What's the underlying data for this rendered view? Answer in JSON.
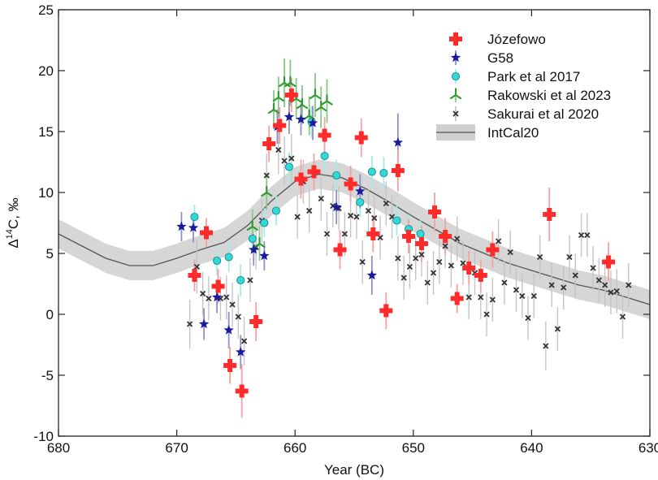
{
  "chart_data": {
    "type": "scatter",
    "xlabel": "Year (BC)",
    "ylabel_main": "Δ",
    "ylabel_sup": "14",
    "ylabel_rest": "C, ‰",
    "xlim": [
      680,
      630
    ],
    "ylim": [
      -10,
      25
    ],
    "x_ticks": [
      680,
      670,
      660,
      650,
      640,
      630
    ],
    "y_ticks": [
      -10,
      -5,
      0,
      5,
      10,
      15,
      20,
      25
    ],
    "legend_position": "top-right",
    "colors": {
      "jozefowo": "#ff2a2a",
      "jozefowo_err": "#f6a0a0",
      "g58": "#1a1aa0",
      "g58_err": "#9090c8",
      "park": "#33d8d8",
      "park_err": "#9eecec",
      "rakowski": "#2f9a2f",
      "rakowski_err": "#86c886",
      "sakurai": "#333333",
      "sakurai_err": "#c4c4c4",
      "intcal": "#555555",
      "intcal_band": "#cfcfcf"
    },
    "series": [
      {
        "name": "Józefowo",
        "key": "jozefowo",
        "marker": "plus",
        "points": [
          {
            "x": 668.5,
            "y": 3.2,
            "e": 1.3
          },
          {
            "x": 667.5,
            "y": 6.7,
            "e": 1.2
          },
          {
            "x": 666.5,
            "y": 2.3,
            "e": 1.4
          },
          {
            "x": 665.5,
            "y": -4.2,
            "e": 1.5
          },
          {
            "x": 664.5,
            "y": -6.3,
            "e": 2.2
          },
          {
            "x": 663.3,
            "y": -0.6,
            "e": 1.6
          },
          {
            "x": 662.2,
            "y": 14.0,
            "e": 1.5
          },
          {
            "x": 661.3,
            "y": 15.5,
            "e": 1.5
          },
          {
            "x": 660.3,
            "y": 18.0,
            "e": 1.4
          },
          {
            "x": 659.5,
            "y": 11.1,
            "e": 1.6
          },
          {
            "x": 658.4,
            "y": 11.7,
            "e": 1.5
          },
          {
            "x": 657.5,
            "y": 14.7,
            "e": 1.5
          },
          {
            "x": 656.2,
            "y": 5.3,
            "e": 1.6
          },
          {
            "x": 655.3,
            "y": 10.7,
            "e": 1.5
          },
          {
            "x": 654.4,
            "y": 14.5,
            "e": 1.6
          },
          {
            "x": 653.4,
            "y": 6.6,
            "e": 1.5
          },
          {
            "x": 652.3,
            "y": 0.3,
            "e": 1.5
          },
          {
            "x": 651.3,
            "y": 11.8,
            "e": 1.7
          },
          {
            "x": 650.4,
            "y": 6.4,
            "e": 1.4
          },
          {
            "x": 649.3,
            "y": 5.8,
            "e": 1.5
          },
          {
            "x": 648.2,
            "y": 8.4,
            "e": 1.6
          },
          {
            "x": 647.3,
            "y": 6.4,
            "e": 1.5
          },
          {
            "x": 646.3,
            "y": 1.3,
            "e": 1.2
          },
          {
            "x": 645.3,
            "y": 3.8,
            "e": 1.4
          },
          {
            "x": 644.3,
            "y": 3.2,
            "e": 1.3
          },
          {
            "x": 643.3,
            "y": 5.3,
            "e": 1.5
          },
          {
            "x": 638.5,
            "y": 8.2,
            "e": 2.2
          },
          {
            "x": 633.5,
            "y": 4.3,
            "e": 1.6
          }
        ]
      },
      {
        "name": "G58",
        "key": "g58",
        "marker": "star",
        "points": [
          {
            "x": 669.6,
            "y": 7.2,
            "e": 1.2
          },
          {
            "x": 668.6,
            "y": 7.1,
            "e": 1.2
          },
          {
            "x": 667.7,
            "y": -0.8,
            "e": 1.3
          },
          {
            "x": 666.6,
            "y": 1.4,
            "e": 1.3
          },
          {
            "x": 665.6,
            "y": -1.3,
            "e": 1.5
          },
          {
            "x": 664.6,
            "y": -3.1,
            "e": 1.4
          },
          {
            "x": 663.5,
            "y": 5.3,
            "e": 1.3
          },
          {
            "x": 662.6,
            "y": 4.8,
            "e": 1.2
          },
          {
            "x": 661.5,
            "y": 15.4,
            "e": 1.4
          },
          {
            "x": 660.5,
            "y": 16.2,
            "e": 1.4
          },
          {
            "x": 659.5,
            "y": 16.0,
            "e": 1.3
          },
          {
            "x": 658.5,
            "y": 15.7,
            "e": 1.4
          },
          {
            "x": 656.5,
            "y": 8.8,
            "e": 1.4
          },
          {
            "x": 654.5,
            "y": 10.1,
            "e": 1.4
          },
          {
            "x": 653.5,
            "y": 3.2,
            "e": 1.6
          },
          {
            "x": 651.3,
            "y": 14.1,
            "e": 2.4
          }
        ]
      },
      {
        "name": "Park et al 2017",
        "key": "park",
        "marker": "circle",
        "points": [
          {
            "x": 668.5,
            "y": 8.0,
            "e": 1.0
          },
          {
            "x": 666.6,
            "y": 4.4,
            "e": 1.2
          },
          {
            "x": 665.6,
            "y": 4.7,
            "e": 1.2
          },
          {
            "x": 664.6,
            "y": 2.8,
            "e": 1.3
          },
          {
            "x": 663.6,
            "y": 6.2,
            "e": 1.2
          },
          {
            "x": 662.6,
            "y": 7.5,
            "e": 1.2
          },
          {
            "x": 661.6,
            "y": 8.5,
            "e": 1.2
          },
          {
            "x": 660.5,
            "y": 12.1,
            "e": 1.2
          },
          {
            "x": 658.6,
            "y": 15.8,
            "e": 1.3
          },
          {
            "x": 657.5,
            "y": 13.0,
            "e": 1.3
          },
          {
            "x": 656.5,
            "y": 11.4,
            "e": 1.3
          },
          {
            "x": 654.5,
            "y": 9.2,
            "e": 1.2
          },
          {
            "x": 653.5,
            "y": 11.7,
            "e": 1.3
          },
          {
            "x": 652.5,
            "y": 11.6,
            "e": 1.3
          },
          {
            "x": 651.4,
            "y": 7.7,
            "e": 1.2
          },
          {
            "x": 650.4,
            "y": 7.0,
            "e": 1.2
          },
          {
            "x": 649.4,
            "y": 6.6,
            "e": 1.1
          }
        ]
      },
      {
        "name": "Rakowski et al 2023",
        "key": "rakowski",
        "marker": "tri",
        "points": [
          {
            "x": 663.6,
            "y": 7.2,
            "e": 1.4
          },
          {
            "x": 663.0,
            "y": 5.8,
            "e": 1.4
          },
          {
            "x": 662.4,
            "y": 10.0,
            "e": 1.4
          },
          {
            "x": 661.8,
            "y": 16.8,
            "e": 1.6
          },
          {
            "x": 661.4,
            "y": 17.8,
            "e": 1.7
          },
          {
            "x": 660.9,
            "y": 19.0,
            "e": 2.0
          },
          {
            "x": 660.4,
            "y": 19.0,
            "e": 1.9
          },
          {
            "x": 659.9,
            "y": 17.7,
            "e": 1.7
          },
          {
            "x": 659.4,
            "y": 17.2,
            "e": 1.6
          },
          {
            "x": 658.8,
            "y": 16.3,
            "e": 1.6
          },
          {
            "x": 658.3,
            "y": 18.0,
            "e": 1.8
          },
          {
            "x": 657.8,
            "y": 17.0,
            "e": 1.7
          },
          {
            "x": 657.3,
            "y": 17.5,
            "e": 1.8
          }
        ]
      },
      {
        "name": "Sakurai et al 2020",
        "key": "sakurai",
        "marker": "cross",
        "points": [
          {
            "x": 668.9,
            "y": -0.8,
            "e": 2.0
          },
          {
            "x": 668.3,
            "y": 3.9,
            "e": 2.2
          },
          {
            "x": 667.8,
            "y": 1.7,
            "e": 1.8
          },
          {
            "x": 667.3,
            "y": 1.3,
            "e": 1.8
          },
          {
            "x": 666.3,
            "y": 1.3,
            "e": 1.8
          },
          {
            "x": 665.8,
            "y": 1.4,
            "e": 1.8
          },
          {
            "x": 665.3,
            "y": 0.8,
            "e": 1.8
          },
          {
            "x": 664.8,
            "y": -0.2,
            "e": 1.8
          },
          {
            "x": 664.3,
            "y": -2.2,
            "e": 2.0
          },
          {
            "x": 663.8,
            "y": 2.8,
            "e": 1.8
          },
          {
            "x": 663.3,
            "y": 5.5,
            "e": 1.8
          },
          {
            "x": 662.8,
            "y": 7.7,
            "e": 1.8
          },
          {
            "x": 662.4,
            "y": 11.4,
            "e": 1.8
          },
          {
            "x": 661.4,
            "y": 13.5,
            "e": 2.0
          },
          {
            "x": 660.9,
            "y": 12.6,
            "e": 2.0
          },
          {
            "x": 660.3,
            "y": 12.8,
            "e": 2.0
          },
          {
            "x": 659.8,
            "y": 8.0,
            "e": 1.8
          },
          {
            "x": 659.3,
            "y": 10.9,
            "e": 1.8
          },
          {
            "x": 658.8,
            "y": 8.5,
            "e": 1.8
          },
          {
            "x": 657.8,
            "y": 9.5,
            "e": 1.8
          },
          {
            "x": 657.3,
            "y": 6.6,
            "e": 1.8
          },
          {
            "x": 656.8,
            "y": 8.9,
            "e": 1.8
          },
          {
            "x": 656.3,
            "y": 8.7,
            "e": 1.8
          },
          {
            "x": 655.8,
            "y": 6.6,
            "e": 1.8
          },
          {
            "x": 655.3,
            "y": 8.1,
            "e": 1.8
          },
          {
            "x": 654.8,
            "y": 8.0,
            "e": 1.8
          },
          {
            "x": 654.3,
            "y": 4.3,
            "e": 1.8
          },
          {
            "x": 653.8,
            "y": 8.5,
            "e": 1.8
          },
          {
            "x": 653.3,
            "y": 7.9,
            "e": 1.8
          },
          {
            "x": 652.8,
            "y": 6.3,
            "e": 1.8
          },
          {
            "x": 652.3,
            "y": 9.1,
            "e": 1.8
          },
          {
            "x": 651.8,
            "y": 8.0,
            "e": 1.8
          },
          {
            "x": 651.3,
            "y": 4.6,
            "e": 1.8
          },
          {
            "x": 650.8,
            "y": 3.0,
            "e": 1.8
          },
          {
            "x": 650.3,
            "y": 3.9,
            "e": 1.8
          },
          {
            "x": 649.8,
            "y": 4.6,
            "e": 1.8
          },
          {
            "x": 649.3,
            "y": 4.9,
            "e": 1.8
          },
          {
            "x": 648.8,
            "y": 2.6,
            "e": 1.8
          },
          {
            "x": 648.3,
            "y": 3.4,
            "e": 1.8
          },
          {
            "x": 647.8,
            "y": 4.3,
            "e": 1.8
          },
          {
            "x": 647.3,
            "y": 5.6,
            "e": 1.8
          },
          {
            "x": 646.8,
            "y": 4.0,
            "e": 1.8
          },
          {
            "x": 646.3,
            "y": 6.2,
            "e": 1.8
          },
          {
            "x": 645.8,
            "y": 4.2,
            "e": 1.8
          },
          {
            "x": 645.3,
            "y": 1.4,
            "e": 1.8
          },
          {
            "x": 644.8,
            "y": 3.4,
            "e": 1.8
          },
          {
            "x": 644.3,
            "y": 1.4,
            "e": 1.8
          },
          {
            "x": 643.8,
            "y": 0.0,
            "e": 1.8
          },
          {
            "x": 643.3,
            "y": 1.2,
            "e": 1.8
          },
          {
            "x": 642.8,
            "y": 6.0,
            "e": 1.8
          },
          {
            "x": 642.3,
            "y": 2.6,
            "e": 1.8
          },
          {
            "x": 641.8,
            "y": 5.1,
            "e": 1.8
          },
          {
            "x": 641.3,
            "y": 2.0,
            "e": 1.8
          },
          {
            "x": 640.8,
            "y": 1.5,
            "e": 1.8
          },
          {
            "x": 640.3,
            "y": -0.3,
            "e": 1.8
          },
          {
            "x": 639.8,
            "y": 1.5,
            "e": 1.8
          },
          {
            "x": 639.3,
            "y": 4.7,
            "e": 1.8
          },
          {
            "x": 638.8,
            "y": -2.6,
            "e": 2.0
          },
          {
            "x": 638.3,
            "y": 2.4,
            "e": 1.8
          },
          {
            "x": 637.8,
            "y": -1.2,
            "e": 1.8
          },
          {
            "x": 637.3,
            "y": 2.2,
            "e": 1.8
          },
          {
            "x": 636.8,
            "y": 4.7,
            "e": 1.8
          },
          {
            "x": 636.3,
            "y": 3.2,
            "e": 1.8
          },
          {
            "x": 635.8,
            "y": 6.5,
            "e": 1.8
          },
          {
            "x": 635.3,
            "y": 6.5,
            "e": 1.8
          },
          {
            "x": 634.8,
            "y": 3.8,
            "e": 1.8
          },
          {
            "x": 634.3,
            "y": 2.8,
            "e": 1.8
          },
          {
            "x": 633.8,
            "y": 2.4,
            "e": 1.8
          },
          {
            "x": 633.3,
            "y": 1.8,
            "e": 1.8
          },
          {
            "x": 632.8,
            "y": 1.9,
            "e": 1.8
          },
          {
            "x": 632.3,
            "y": -0.2,
            "e": 1.8
          },
          {
            "x": 631.8,
            "y": 2.4,
            "e": 1.8
          }
        ]
      },
      {
        "name": "IntCal20",
        "key": "intcal",
        "marker": "line",
        "band_halfwidth": 1.2,
        "points": [
          {
            "x": 680,
            "y": 6.6
          },
          {
            "x": 678,
            "y": 5.6
          },
          {
            "x": 676,
            "y": 4.6
          },
          {
            "x": 674,
            "y": 4.0
          },
          {
            "x": 672,
            "y": 4.0
          },
          {
            "x": 670,
            "y": 4.6
          },
          {
            "x": 668,
            "y": 5.3
          },
          {
            "x": 666,
            "y": 5.9
          },
          {
            "x": 664,
            "y": 7.3
          },
          {
            "x": 662,
            "y": 9.3
          },
          {
            "x": 660,
            "y": 10.9
          },
          {
            "x": 658,
            "y": 11.5
          },
          {
            "x": 656,
            "y": 11.2
          },
          {
            "x": 654,
            "y": 10.3
          },
          {
            "x": 652,
            "y": 9.2
          },
          {
            "x": 650,
            "y": 8.0
          },
          {
            "x": 648,
            "y": 6.9
          },
          {
            "x": 646,
            "y": 5.8
          },
          {
            "x": 644,
            "y": 5.0
          },
          {
            "x": 642,
            "y": 4.2
          },
          {
            "x": 640,
            "y": 3.6
          },
          {
            "x": 638,
            "y": 3.0
          },
          {
            "x": 636,
            "y": 2.4
          },
          {
            "x": 634,
            "y": 2.0
          },
          {
            "x": 632,
            "y": 1.4
          },
          {
            "x": 630,
            "y": 0.8
          }
        ]
      }
    ]
  }
}
